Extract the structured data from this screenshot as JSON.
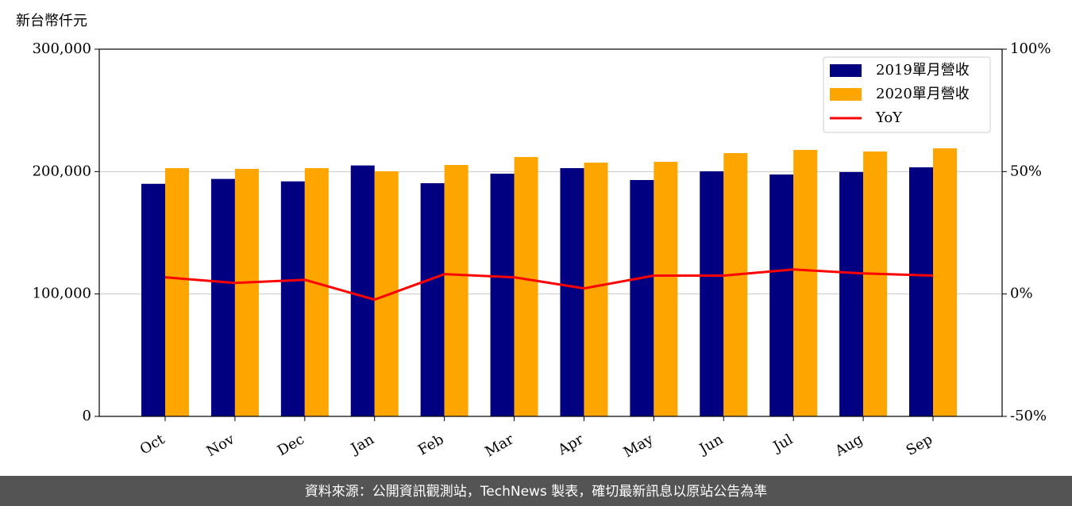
{
  "chart_data": {
    "type": "bar",
    "y_label": "新台幣仟元",
    "categories": [
      "Oct",
      "Nov",
      "Dec",
      "Jan",
      "Feb",
      "Mar",
      "Apr",
      "May",
      "Jun",
      "Jul",
      "Aug",
      "Sep"
    ],
    "series": [
      {
        "name": "2019單月營收",
        "color": "#000080",
        "values": [
          190000,
          194000,
          192000,
          205000,
          190500,
          198300,
          202800,
          193100,
          200200,
          197600,
          199600,
          203500
        ]
      },
      {
        "name": "2020單月營收",
        "color": "#ffa500",
        "values": [
          202800,
          202200,
          202800,
          200200,
          205400,
          211900,
          207300,
          208000,
          215100,
          217700,
          216400,
          219000
        ]
      },
      {
        "name": "YoY",
        "type": "line",
        "color": "#ff0000",
        "axis": "y2",
        "values": [
          6.8,
          4.5,
          5.8,
          -2.3,
          8.1,
          6.8,
          2.3,
          7.5,
          7.5,
          10.0,
          8.4,
          7.5
        ]
      }
    ],
    "ylim": [
      0,
      300000
    ],
    "yticks": [
      0,
      {
        "value": 100000,
        "label": "100,000"
      },
      {
        "value": 200000,
        "label": "200,000"
      },
      {
        "value": 300000,
        "label": "300,000"
      }
    ],
    "y2lim": [
      -50,
      100
    ],
    "y2ticks": [
      {
        "value": -50,
        "label": "-50%"
      },
      {
        "value": 0,
        "label": "0%"
      },
      {
        "value": 50,
        "label": "50%"
      },
      {
        "value": 100,
        "label": "100%"
      }
    ],
    "grid": true,
    "legend": "upper right"
  },
  "footer": "資料來源：公開資訊觀測站，TechNews 製表，確切最新訊息以原站公告為準"
}
